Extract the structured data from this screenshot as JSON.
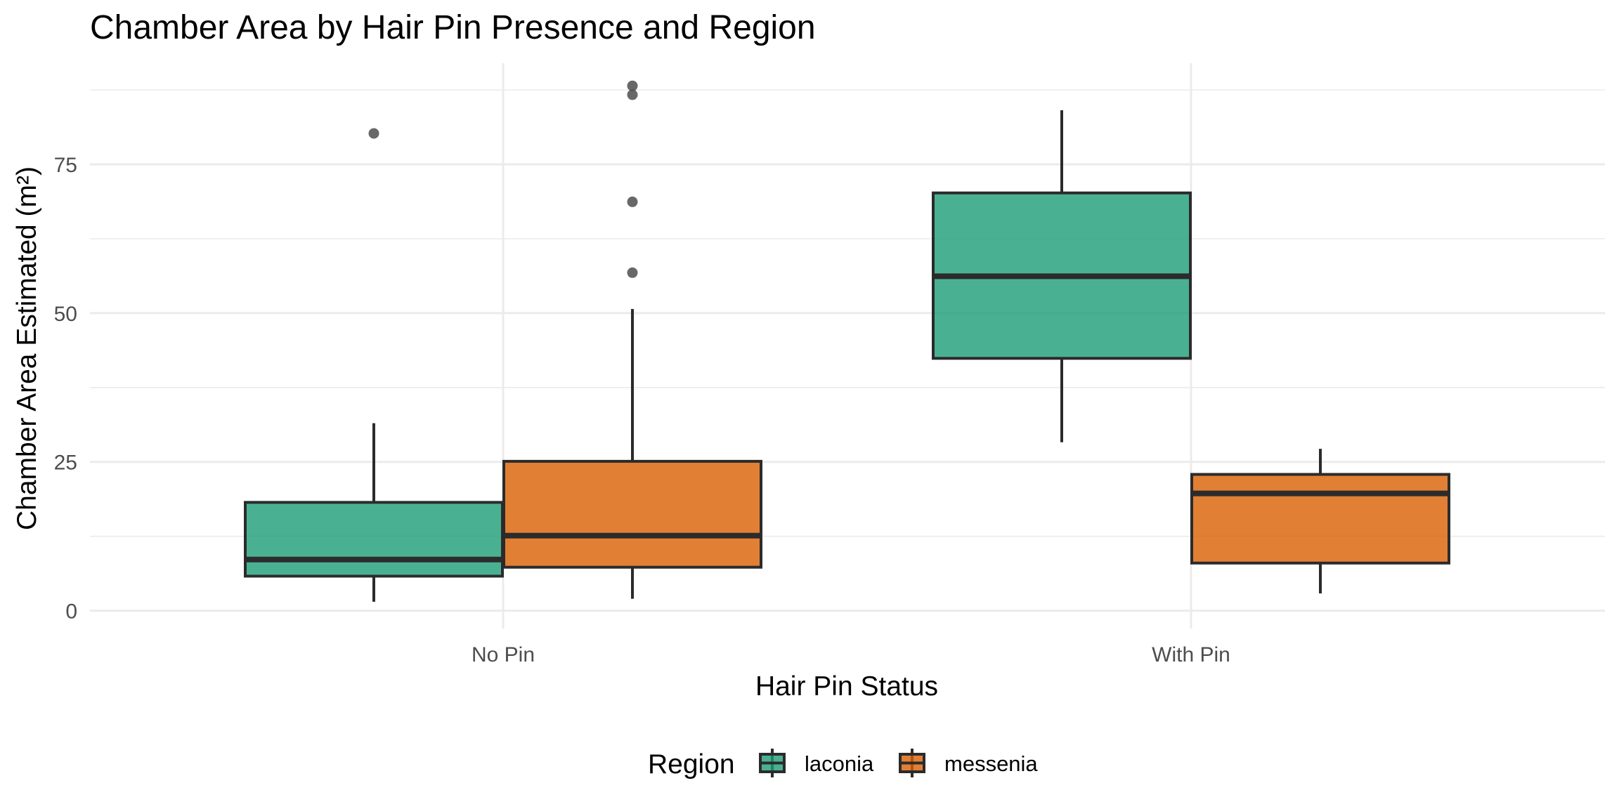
{
  "chart_data": {
    "type": "boxplot",
    "title": "Chamber Area by Hair Pin Presence and Region",
    "xlabel": "Hair Pin Status",
    "ylabel": "Chamber Area Estimated (m²)",
    "categories": [
      "No Pin",
      "With Pin"
    ],
    "ylim": [
      -3,
      92
    ],
    "yticks": [
      0,
      25,
      50,
      75
    ],
    "grid": true,
    "legend": {
      "title": "Region",
      "position": "bottom"
    },
    "series": [
      {
        "name": "laconia",
        "color": "#1b9e77",
        "boxes": [
          {
            "category": "No Pin",
            "min": 1.5,
            "q1": 5.8,
            "median": 8.6,
            "q3": 18.2,
            "max": 31.5,
            "outliers": [
              80.2
            ]
          },
          {
            "category": "With Pin",
            "min": 28.3,
            "q1": 42.4,
            "median": 56.2,
            "q3": 70.2,
            "max": 84.1,
            "outliers": []
          }
        ]
      },
      {
        "name": "messenia",
        "color": "#d95f02",
        "boxes": [
          {
            "category": "No Pin",
            "min": 2.0,
            "q1": 7.3,
            "median": 12.6,
            "q3": 25.1,
            "max": 50.7,
            "outliers": [
              56.8,
              68.7,
              86.7,
              88.2
            ]
          },
          {
            "category": "With Pin",
            "min": 2.9,
            "q1": 8.0,
            "median": 19.7,
            "q3": 22.9,
            "max": 27.2,
            "outliers": []
          }
        ]
      }
    ]
  }
}
